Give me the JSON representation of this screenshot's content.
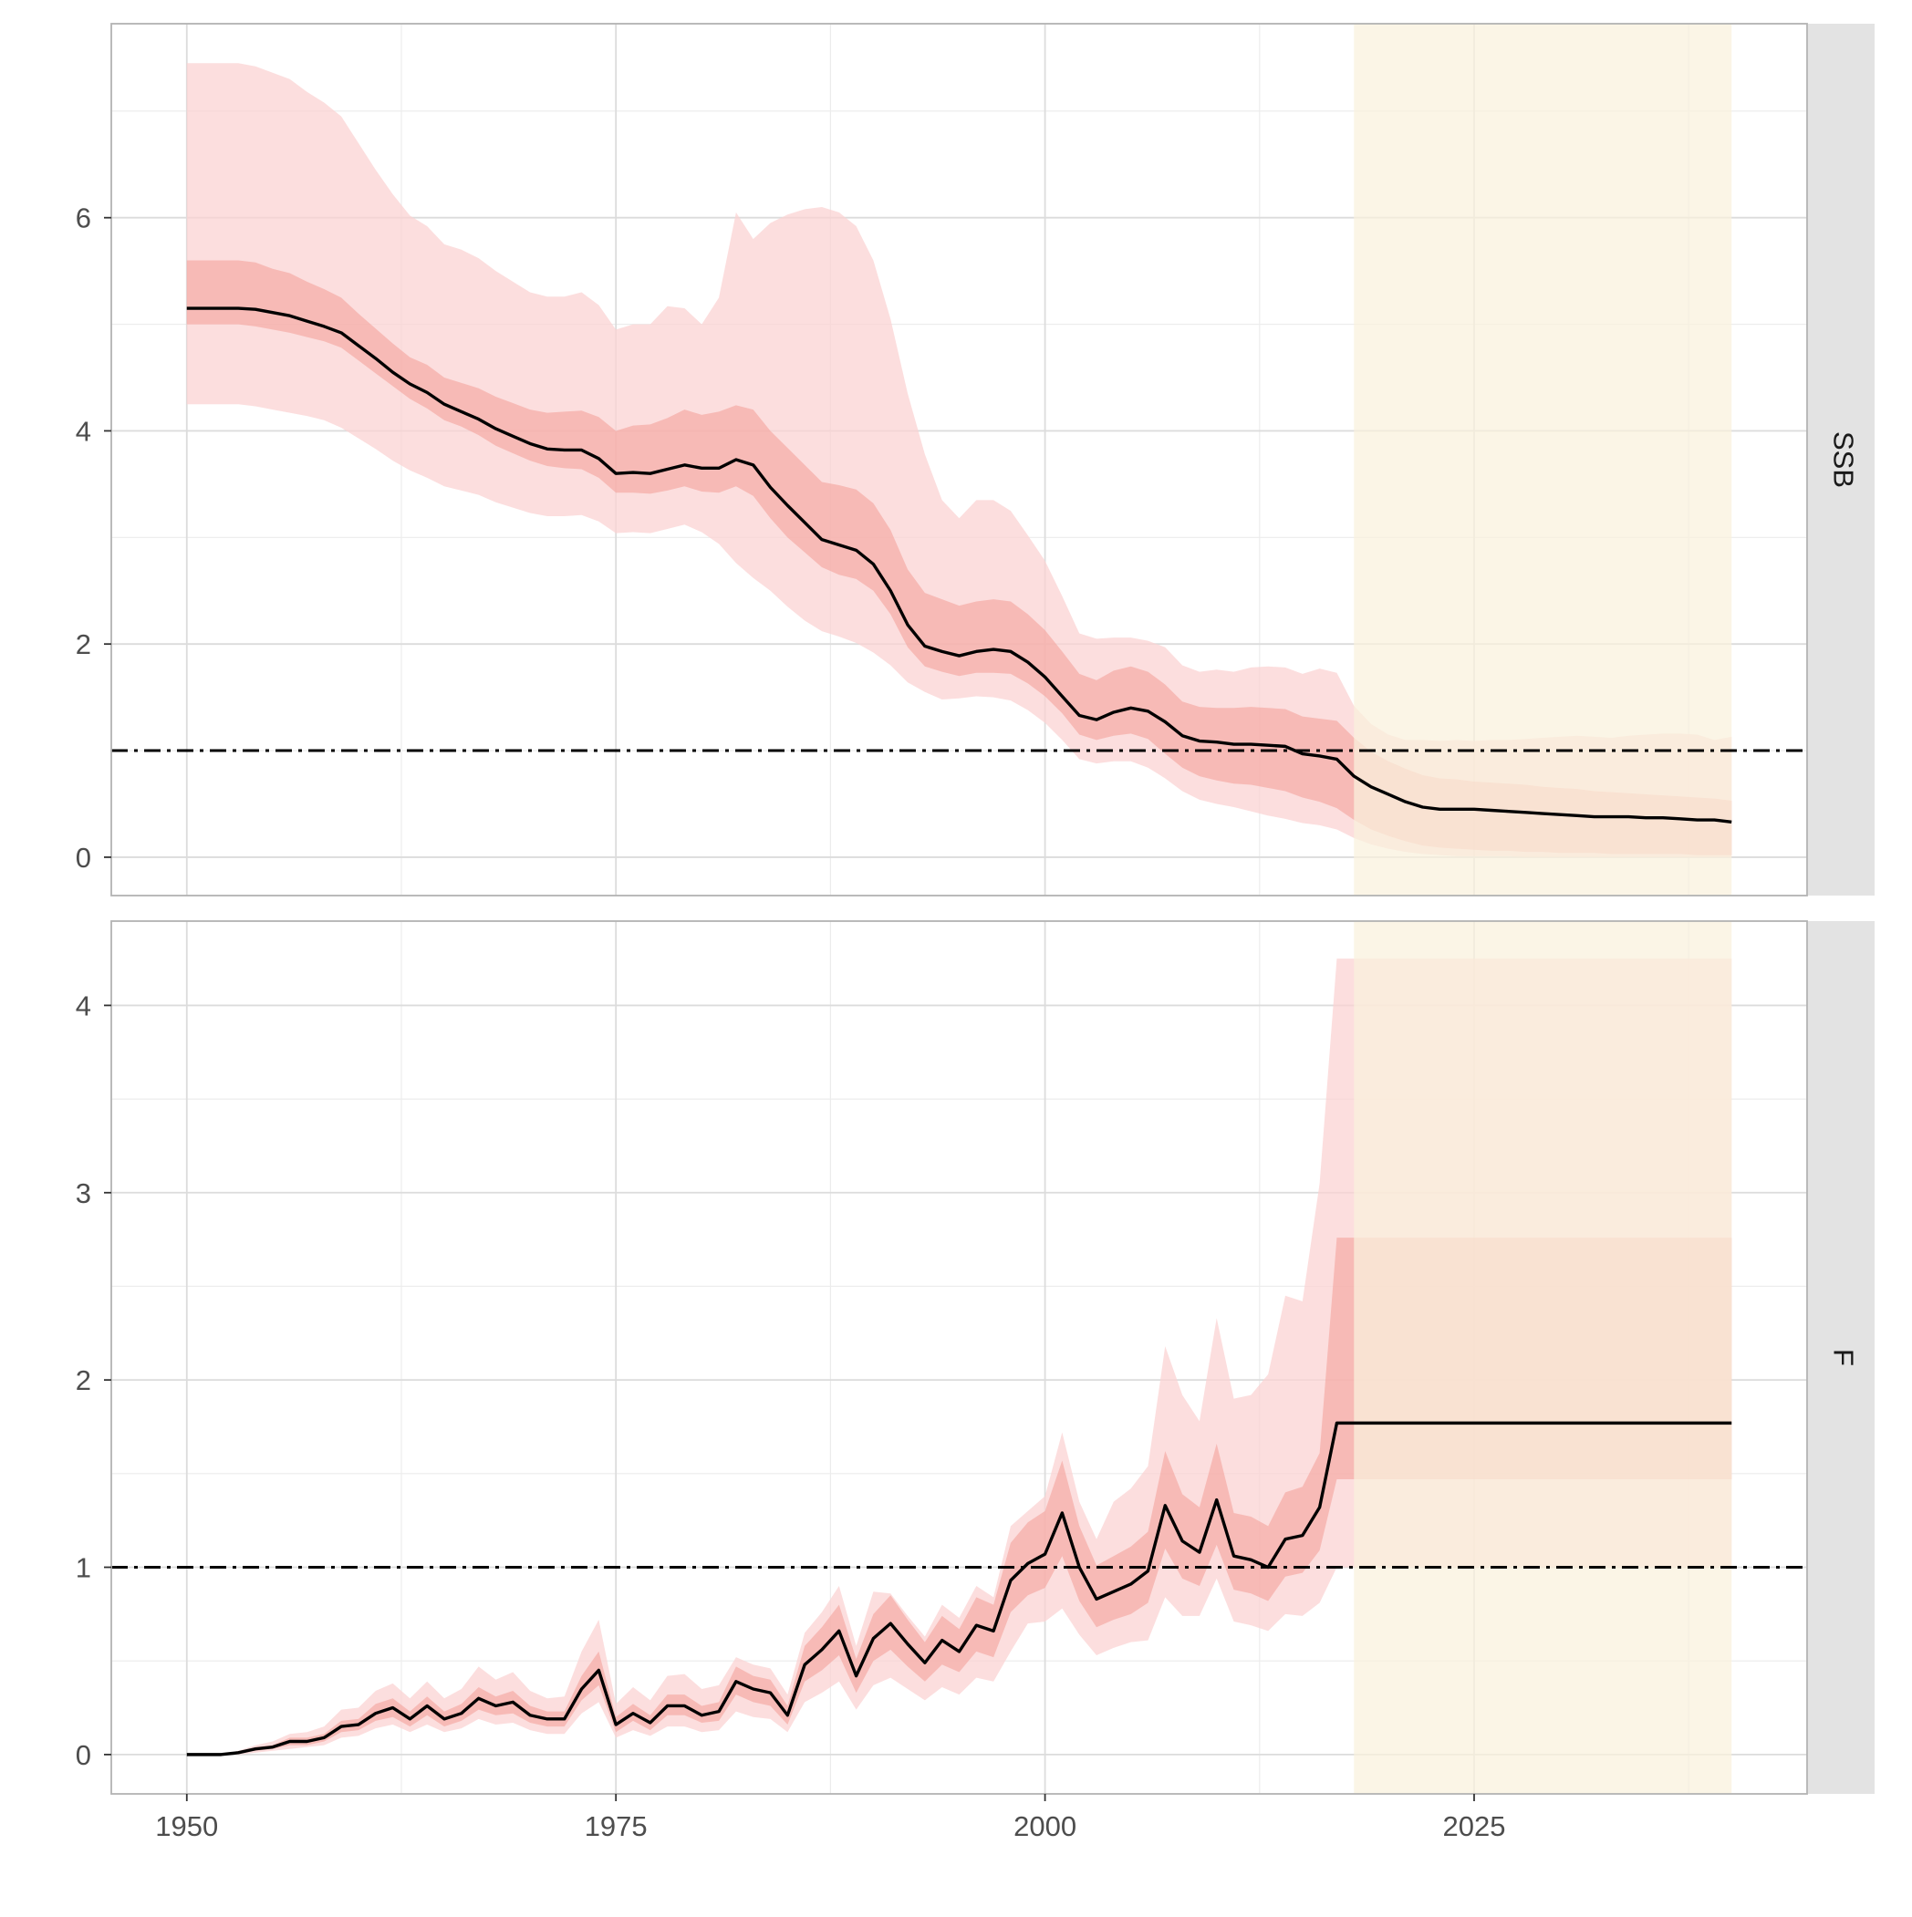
{
  "chart_data": {
    "type": "line",
    "layout": "faceted-vertical",
    "x": {
      "ticks": [
        1950,
        1975,
        2000,
        2025
      ],
      "tick_labels": [
        "1950",
        "1975",
        "2000",
        "2025"
      ],
      "range": [
        1945.6,
        2044.4
      ]
    },
    "projection_period": [
      2018,
      2040
    ],
    "colors": {
      "outer_band": "#fbd3d3",
      "inner_band": "#f5a6a0",
      "line": "#000000",
      "projection": "#faf1dc",
      "strip": "#e3e3e3",
      "grid": "#dcdcdc",
      "axis_text": "#4d4d4d"
    },
    "panels": [
      {
        "strip_label": "SSB",
        "y_ticks": [
          0,
          2,
          4,
          6
        ],
        "y_tick_labels": [
          "0",
          "2",
          "4",
          "6"
        ],
        "ylim": [
          -0.36,
          7.82
        ],
        "ref_line": 1,
        "years": [
          1950,
          1951,
          1952,
          1953,
          1954,
          1955,
          1956,
          1957,
          1958,
          1959,
          1960,
          1961,
          1962,
          1963,
          1964,
          1965,
          1966,
          1967,
          1968,
          1969,
          1970,
          1971,
          1972,
          1973,
          1974,
          1975,
          1976,
          1977,
          1978,
          1979,
          1980,
          1981,
          1982,
          1983,
          1984,
          1985,
          1986,
          1987,
          1988,
          1989,
          1990,
          1991,
          1992,
          1993,
          1994,
          1995,
          1996,
          1997,
          1998,
          1999,
          2000,
          2001,
          2002,
          2003,
          2004,
          2005,
          2006,
          2007,
          2008,
          2009,
          2010,
          2011,
          2012,
          2013,
          2014,
          2015,
          2016,
          2017,
          2018,
          2019,
          2020,
          2021,
          2022,
          2023,
          2024,
          2025,
          2026,
          2027,
          2028,
          2029,
          2030,
          2031,
          2032,
          2033,
          2034,
          2035,
          2036,
          2037,
          2038,
          2039,
          2040
        ],
        "median": [
          5.15,
          5.15,
          5.15,
          5.15,
          5.14,
          5.11,
          5.08,
          5.03,
          4.98,
          4.92,
          4.8,
          4.68,
          4.55,
          4.44,
          4.36,
          4.25,
          4.18,
          4.11,
          4.02,
          3.95,
          3.88,
          3.83,
          3.82,
          3.82,
          3.74,
          3.6,
          3.61,
          3.6,
          3.64,
          3.68,
          3.65,
          3.65,
          3.73,
          3.68,
          3.47,
          3.3,
          3.14,
          2.98,
          2.93,
          2.88,
          2.75,
          2.5,
          2.18,
          1.98,
          1.93,
          1.89,
          1.93,
          1.95,
          1.93,
          1.83,
          1.69,
          1.51,
          1.33,
          1.29,
          1.36,
          1.4,
          1.37,
          1.27,
          1.14,
          1.09,
          1.08,
          1.06,
          1.06,
          1.05,
          1.04,
          0.97,
          0.95,
          0.92,
          0.76,
          0.66,
          0.59,
          0.52,
          0.47,
          0.45,
          0.45,
          0.45,
          0.44,
          0.43,
          0.42,
          0.41,
          0.4,
          0.39,
          0.38,
          0.38,
          0.38,
          0.37,
          0.37,
          0.36,
          0.35,
          0.35,
          0.33
        ],
        "inner_low": [
          5.0,
          5.0,
          5.0,
          5.0,
          4.98,
          4.95,
          4.92,
          4.88,
          4.84,
          4.78,
          4.66,
          4.54,
          4.42,
          4.3,
          4.21,
          4.1,
          4.04,
          3.96,
          3.86,
          3.79,
          3.72,
          3.67,
          3.65,
          3.64,
          3.56,
          3.42,
          3.42,
          3.41,
          3.44,
          3.48,
          3.43,
          3.42,
          3.48,
          3.39,
          3.18,
          3.0,
          2.86,
          2.72,
          2.65,
          2.61,
          2.5,
          2.28,
          1.97,
          1.79,
          1.74,
          1.7,
          1.73,
          1.73,
          1.72,
          1.63,
          1.51,
          1.35,
          1.15,
          1.1,
          1.14,
          1.16,
          1.11,
          0.97,
          0.84,
          0.76,
          0.72,
          0.69,
          0.68,
          0.65,
          0.62,
          0.56,
          0.52,
          0.46,
          0.35,
          0.26,
          0.2,
          0.15,
          0.11,
          0.09,
          0.08,
          0.07,
          0.06,
          0.06,
          0.05,
          0.05,
          0.04,
          0.04,
          0.04,
          0.03,
          0.03,
          0.03,
          0.03,
          0.03,
          0.02,
          0.02,
          0.02
        ],
        "inner_high": [
          5.6,
          5.6,
          5.6,
          5.6,
          5.58,
          5.52,
          5.48,
          5.4,
          5.33,
          5.25,
          5.1,
          4.96,
          4.82,
          4.69,
          4.62,
          4.5,
          4.45,
          4.4,
          4.32,
          4.26,
          4.2,
          4.17,
          4.18,
          4.19,
          4.13,
          4.0,
          4.05,
          4.06,
          4.12,
          4.2,
          4.15,
          4.18,
          4.24,
          4.2,
          4.0,
          3.84,
          3.68,
          3.52,
          3.49,
          3.45,
          3.32,
          3.07,
          2.7,
          2.48,
          2.42,
          2.36,
          2.4,
          2.42,
          2.4,
          2.28,
          2.13,
          1.93,
          1.72,
          1.66,
          1.75,
          1.79,
          1.74,
          1.62,
          1.46,
          1.41,
          1.4,
          1.4,
          1.41,
          1.4,
          1.39,
          1.32,
          1.3,
          1.28,
          1.12,
          0.99,
          0.9,
          0.83,
          0.77,
          0.74,
          0.73,
          0.71,
          0.7,
          0.69,
          0.68,
          0.66,
          0.65,
          0.64,
          0.62,
          0.61,
          0.6,
          0.59,
          0.58,
          0.57,
          0.56,
          0.55,
          0.53
        ],
        "outer_low": [
          4.25,
          4.25,
          4.25,
          4.25,
          4.23,
          4.2,
          4.17,
          4.14,
          4.1,
          4.03,
          3.93,
          3.83,
          3.72,
          3.63,
          3.56,
          3.48,
          3.44,
          3.4,
          3.33,
          3.28,
          3.23,
          3.2,
          3.2,
          3.21,
          3.15,
          3.04,
          3.05,
          3.04,
          3.08,
          3.12,
          3.05,
          2.94,
          2.76,
          2.62,
          2.5,
          2.35,
          2.22,
          2.12,
          2.07,
          2.01,
          1.92,
          1.8,
          1.64,
          1.55,
          1.48,
          1.49,
          1.51,
          1.5,
          1.47,
          1.38,
          1.26,
          1.1,
          0.92,
          0.88,
          0.9,
          0.9,
          0.84,
          0.74,
          0.62,
          0.54,
          0.5,
          0.47,
          0.43,
          0.39,
          0.36,
          0.32,
          0.3,
          0.26,
          0.18,
          0.12,
          0.08,
          0.05,
          0.03,
          0.02,
          0.01,
          0.01,
          0.01,
          0.01,
          0.0,
          0.0,
          0.0,
          0.0,
          0.0,
          0.0,
          0.0,
          0.0,
          0.0,
          0.0,
          0.0,
          0.0,
          0.0
        ],
        "outer_high": [
          7.45,
          7.45,
          7.45,
          7.45,
          7.42,
          7.36,
          7.3,
          7.18,
          7.08,
          6.95,
          6.7,
          6.45,
          6.22,
          6.02,
          5.92,
          5.75,
          5.7,
          5.62,
          5.5,
          5.4,
          5.3,
          5.26,
          5.26,
          5.3,
          5.18,
          4.95,
          5.0,
          5.0,
          5.17,
          5.15,
          5.0,
          5.25,
          6.05,
          5.8,
          5.95,
          6.03,
          6.08,
          6.1,
          6.05,
          5.92,
          5.6,
          5.05,
          4.35,
          3.78,
          3.35,
          3.18,
          3.35,
          3.35,
          3.25,
          3.02,
          2.78,
          2.45,
          2.1,
          2.05,
          2.06,
          2.06,
          2.03,
          1.97,
          1.8,
          1.74,
          1.76,
          1.74,
          1.78,
          1.79,
          1.78,
          1.72,
          1.77,
          1.73,
          1.42,
          1.25,
          1.15,
          1.1,
          1.1,
          1.09,
          1.1,
          1.09,
          1.1,
          1.1,
          1.11,
          1.12,
          1.13,
          1.14,
          1.13,
          1.12,
          1.14,
          1.15,
          1.16,
          1.16,
          1.15,
          1.1,
          1.13
        ]
      },
      {
        "strip_label": "F",
        "y_ticks": [
          0,
          1,
          2,
          3,
          4
        ],
        "y_tick_labels": [
          "0",
          "1",
          "2",
          "3",
          "4"
        ],
        "ylim": [
          -0.21,
          4.45
        ],
        "ref_line": 1,
        "years": [
          1950,
          1951,
          1952,
          1953,
          1954,
          1955,
          1956,
          1957,
          1958,
          1959,
          1960,
          1961,
          1962,
          1963,
          1964,
          1965,
          1966,
          1967,
          1968,
          1969,
          1970,
          1971,
          1972,
          1973,
          1974,
          1975,
          1976,
          1977,
          1978,
          1979,
          1980,
          1981,
          1982,
          1983,
          1984,
          1985,
          1986,
          1987,
          1988,
          1989,
          1990,
          1991,
          1992,
          1993,
          1994,
          1995,
          1996,
          1997,
          1998,
          1999,
          2000,
          2001,
          2002,
          2003,
          2004,
          2005,
          2006,
          2007,
          2008,
          2009,
          2010,
          2011,
          2012,
          2013,
          2014,
          2015,
          2016,
          2017,
          2018,
          2019,
          2020,
          2021,
          2022,
          2023,
          2024,
          2025,
          2026,
          2027,
          2028,
          2029,
          2030,
          2031,
          2032,
          2033,
          2034,
          2035,
          2036,
          2037,
          2038,
          2039,
          2040
        ],
        "median": [
          0.0,
          0.0,
          0.0,
          0.01,
          0.03,
          0.04,
          0.07,
          0.07,
          0.09,
          0.15,
          0.16,
          0.22,
          0.25,
          0.19,
          0.26,
          0.19,
          0.22,
          0.3,
          0.26,
          0.28,
          0.21,
          0.19,
          0.19,
          0.35,
          0.45,
          0.16,
          0.22,
          0.17,
          0.26,
          0.26,
          0.21,
          0.23,
          0.39,
          0.35,
          0.33,
          0.21,
          0.48,
          0.56,
          0.66,
          0.42,
          0.62,
          0.7,
          0.59,
          0.49,
          0.61,
          0.55,
          0.69,
          0.66,
          0.93,
          1.02,
          1.07,
          1.29,
          1.0,
          0.83,
          0.87,
          0.91,
          0.98,
          1.33,
          1.14,
          1.08,
          1.36,
          1.06,
          1.04,
          1.0,
          1.15,
          1.17,
          1.32,
          1.77,
          1.77,
          1.77,
          1.77,
          1.77,
          1.77,
          1.77,
          1.77,
          1.77,
          1.77,
          1.77,
          1.77,
          1.77,
          1.77,
          1.77,
          1.77,
          1.77,
          1.77,
          1.77,
          1.77,
          1.77,
          1.77,
          1.77,
          1.77
        ],
        "inner_low": [
          0.0,
          0.0,
          0.0,
          0.01,
          0.02,
          0.03,
          0.05,
          0.05,
          0.07,
          0.12,
          0.13,
          0.18,
          0.2,
          0.15,
          0.21,
          0.15,
          0.18,
          0.24,
          0.21,
          0.22,
          0.17,
          0.15,
          0.15,
          0.29,
          0.37,
          0.12,
          0.18,
          0.13,
          0.21,
          0.21,
          0.17,
          0.18,
          0.32,
          0.28,
          0.26,
          0.16,
          0.39,
          0.45,
          0.53,
          0.33,
          0.5,
          0.56,
          0.47,
          0.39,
          0.48,
          0.44,
          0.55,
          0.52,
          0.76,
          0.85,
          0.89,
          1.06,
          0.82,
          0.68,
          0.72,
          0.75,
          0.81,
          1.1,
          0.94,
          0.9,
          1.12,
          0.88,
          0.86,
          0.82,
          0.95,
          0.97,
          1.09,
          1.47,
          1.47,
          1.47,
          1.47,
          1.47,
          1.47,
          1.47,
          1.47,
          1.47,
          1.47,
          1.47,
          1.47,
          1.47,
          1.47,
          1.47,
          1.47,
          1.47,
          1.47,
          1.47,
          1.47,
          1.47,
          1.47,
          1.47,
          1.47
        ],
        "inner_high": [
          0.0,
          0.0,
          0.0,
          0.01,
          0.04,
          0.05,
          0.09,
          0.09,
          0.11,
          0.18,
          0.19,
          0.27,
          0.3,
          0.23,
          0.31,
          0.23,
          0.27,
          0.36,
          0.31,
          0.34,
          0.26,
          0.23,
          0.23,
          0.42,
          0.55,
          0.2,
          0.27,
          0.21,
          0.32,
          0.32,
          0.26,
          0.28,
          0.47,
          0.42,
          0.4,
          0.26,
          0.58,
          0.68,
          0.8,
          0.51,
          0.75,
          0.85,
          0.72,
          0.6,
          0.74,
          0.67,
          0.84,
          0.8,
          1.13,
          1.24,
          1.3,
          1.57,
          1.22,
          1.01,
          1.06,
          1.11,
          1.19,
          1.62,
          1.39,
          1.32,
          1.66,
          1.29,
          1.27,
          1.22,
          1.4,
          1.43,
          1.61,
          2.76,
          2.76,
          2.76,
          2.76,
          2.76,
          2.76,
          2.76,
          2.76,
          2.76,
          2.76,
          2.76,
          2.76,
          2.76,
          2.76,
          2.76,
          2.76,
          2.76,
          2.76,
          2.76,
          2.76,
          2.76,
          2.76,
          2.76,
          2.76
        ],
        "outer_low": [
          0.0,
          0.0,
          0.0,
          0.0,
          0.01,
          0.02,
          0.03,
          0.04,
          0.05,
          0.09,
          0.1,
          0.14,
          0.16,
          0.12,
          0.16,
          0.12,
          0.14,
          0.19,
          0.16,
          0.17,
          0.13,
          0.11,
          0.11,
          0.22,
          0.28,
          0.09,
          0.13,
          0.1,
          0.15,
          0.15,
          0.12,
          0.13,
          0.23,
          0.2,
          0.19,
          0.12,
          0.28,
          0.33,
          0.39,
          0.24,
          0.37,
          0.41,
          0.35,
          0.29,
          0.36,
          0.32,
          0.41,
          0.39,
          0.55,
          0.7,
          0.71,
          0.78,
          0.64,
          0.53,
          0.57,
          0.6,
          0.61,
          0.84,
          0.74,
          0.74,
          0.94,
          0.71,
          0.69,
          0.66,
          0.75,
          0.74,
          0.81,
          1.0,
          1.0,
          1.0,
          1.0,
          1.0,
          1.0,
          1.0,
          1.0,
          1.0,
          1.0,
          1.0,
          1.0,
          1.0,
          1.0,
          1.0,
          1.0,
          1.0,
          1.0,
          1.0,
          1.0,
          1.0,
          1.0,
          1.0,
          1.0
        ],
        "outer_high": [
          0.0,
          0.0,
          0.0,
          0.02,
          0.05,
          0.07,
          0.11,
          0.12,
          0.15,
          0.24,
          0.25,
          0.34,
          0.38,
          0.3,
          0.39,
          0.3,
          0.35,
          0.47,
          0.4,
          0.44,
          0.34,
          0.3,
          0.31,
          0.55,
          0.72,
          0.27,
          0.36,
          0.29,
          0.42,
          0.43,
          0.35,
          0.37,
          0.52,
          0.48,
          0.46,
          0.32,
          0.65,
          0.76,
          0.9,
          0.58,
          0.87,
          0.86,
          0.74,
          0.63,
          0.8,
          0.73,
          0.9,
          0.84,
          1.22,
          1.3,
          1.38,
          1.72,
          1.35,
          1.15,
          1.35,
          1.42,
          1.54,
          2.18,
          1.92,
          1.78,
          2.33,
          1.9,
          1.92,
          2.03,
          2.45,
          2.42,
          3.05,
          4.25,
          4.25,
          4.25,
          4.25,
          4.25,
          4.25,
          4.25,
          4.25,
          4.25,
          4.25,
          4.25,
          4.25,
          4.25,
          4.25,
          4.25,
          4.25,
          4.25,
          4.25,
          4.25,
          4.25,
          4.25,
          4.25,
          4.25,
          4.25
        ]
      }
    ]
  }
}
